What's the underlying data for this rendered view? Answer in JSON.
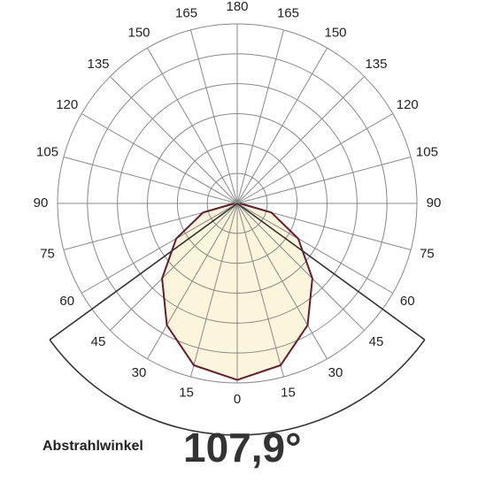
{
  "chart_data": {
    "type": "polar",
    "angles": [
      0,
      15,
      30,
      45,
      60,
      75,
      90,
      105,
      120,
      135,
      150,
      165,
      180
    ],
    "curve_angles": [
      0,
      15,
      30,
      45,
      60,
      75,
      90
    ],
    "values": [
      590,
      560,
      470,
      355,
      235,
      118,
      10
    ],
    "rlim": [
      0,
      600
    ],
    "rticks": [
      100,
      200,
      300,
      400,
      500,
      600
    ],
    "color": "#6b1a2a",
    "fill": "#fbf5dc",
    "beam_angle": {
      "label": "Abstrahlwinkel",
      "value": 107.9,
      "value_label": "107,9°"
    }
  }
}
